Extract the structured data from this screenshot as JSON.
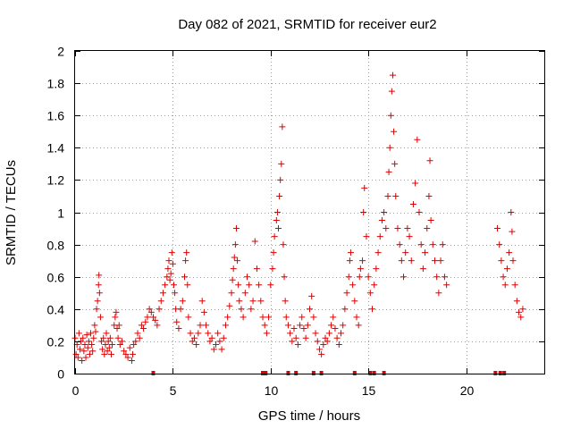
{
  "chart_data": {
    "type": "scatter",
    "title": "Day 082 of 2021, SRMTID for receiver eur2",
    "xlabel": "GPS time / hours",
    "ylabel": "SRMTID / TECUs",
    "xlim": [
      0,
      24
    ],
    "ylim": [
      0,
      2
    ],
    "xticks": [
      0,
      5,
      10,
      15,
      20
    ],
    "yticks": [
      0,
      0.2,
      0.4,
      0.6,
      0.8,
      1,
      1.2,
      1.4,
      1.6,
      1.8,
      2
    ],
    "ytick_labels": [
      "0",
      "0.2",
      "0.4",
      "0.6",
      "0.8",
      "1",
      "1.2",
      "1.4",
      "1.6",
      "1.8",
      "2"
    ],
    "grid": true,
    "marker": "+",
    "color": "#e00000",
    "data_gap_markers_x": [
      4.0,
      9.6,
      9.75,
      10.9,
      11.3,
      12.2,
      12.6,
      14.3,
      15.1,
      15.3,
      15.8,
      21.5,
      21.75,
      21.95
    ],
    "series": [
      {
        "name": "SRMTID",
        "points": [
          [
            0.0,
            0.22
          ],
          [
            0.05,
            0.12
          ],
          [
            0.1,
            0.18
          ],
          [
            0.15,
            0.1
          ],
          [
            0.2,
            0.25
          ],
          [
            0.25,
            0.15
          ],
          [
            0.3,
            0.2
          ],
          [
            0.35,
            0.08
          ],
          [
            0.4,
            0.22
          ],
          [
            0.45,
            0.14
          ],
          [
            0.5,
            0.18
          ],
          [
            0.55,
            0.1
          ],
          [
            0.6,
            0.24
          ],
          [
            0.65,
            0.16
          ],
          [
            0.7,
            0.2
          ],
          [
            0.75,
            0.12
          ],
          [
            0.8,
            0.25
          ],
          [
            0.85,
            0.18
          ],
          [
            0.9,
            0.14
          ],
          [
            0.95,
            0.22
          ],
          [
            1.0,
            0.3
          ],
          [
            1.05,
            0.26
          ],
          [
            1.1,
            0.4
          ],
          [
            1.15,
            0.45
          ],
          [
            1.2,
            0.55
          ],
          [
            1.22,
            0.61
          ],
          [
            1.25,
            0.5
          ],
          [
            1.3,
            0.35
          ],
          [
            1.35,
            0.2
          ],
          [
            1.4,
            0.15
          ],
          [
            1.45,
            0.22
          ],
          [
            1.5,
            0.12
          ],
          [
            1.55,
            0.18
          ],
          [
            1.6,
            0.25
          ],
          [
            1.65,
            0.14
          ],
          [
            1.7,
            0.2
          ],
          [
            1.75,
            0.16
          ],
          [
            1.8,
            0.22
          ],
          [
            1.85,
            0.12
          ],
          [
            1.9,
            0.18
          ],
          [
            2.0,
            0.3
          ],
          [
            2.05,
            0.35
          ],
          [
            2.1,
            0.38
          ],
          [
            2.15,
            0.28
          ],
          [
            2.2,
            0.22
          ],
          [
            2.25,
            0.3
          ],
          [
            2.3,
            0.18
          ],
          [
            2.4,
            0.2
          ],
          [
            2.5,
            0.14
          ],
          [
            2.6,
            0.12
          ],
          [
            2.7,
            0.1
          ],
          [
            2.8,
            0.16
          ],
          [
            2.9,
            0.08
          ],
          [
            2.95,
            0.12
          ],
          [
            3.0,
            0.18
          ],
          [
            3.1,
            0.2
          ],
          [
            3.2,
            0.25
          ],
          [
            3.3,
            0.22
          ],
          [
            3.4,
            0.3
          ],
          [
            3.5,
            0.28
          ],
          [
            3.6,
            0.32
          ],
          [
            3.7,
            0.35
          ],
          [
            3.8,
            0.4
          ],
          [
            3.9,
            0.38
          ],
          [
            4.0,
            0.35
          ],
          [
            4.1,
            0.33
          ],
          [
            4.2,
            0.3
          ],
          [
            4.3,
            0.4
          ],
          [
            4.4,
            0.45
          ],
          [
            4.5,
            0.5
          ],
          [
            4.6,
            0.55
          ],
          [
            4.7,
            0.6
          ],
          [
            4.75,
            0.65
          ],
          [
            4.8,
            0.7
          ],
          [
            4.85,
            0.58
          ],
          [
            4.9,
            0.62
          ],
          [
            4.95,
            0.75
          ],
          [
            5.0,
            0.68
          ],
          [
            5.05,
            0.55
          ],
          [
            5.1,
            0.5
          ],
          [
            5.15,
            0.4
          ],
          [
            5.2,
            0.32
          ],
          [
            5.3,
            0.28
          ],
          [
            5.4,
            0.4
          ],
          [
            5.5,
            0.45
          ],
          [
            5.6,
            0.6
          ],
          [
            5.65,
            0.7
          ],
          [
            5.7,
            0.75
          ],
          [
            5.75,
            0.55
          ],
          [
            5.8,
            0.35
          ],
          [
            5.9,
            0.25
          ],
          [
            6.0,
            0.2
          ],
          [
            6.1,
            0.22
          ],
          [
            6.2,
            0.18
          ],
          [
            6.3,
            0.25
          ],
          [
            6.4,
            0.3
          ],
          [
            6.5,
            0.45
          ],
          [
            6.6,
            0.38
          ],
          [
            6.7,
            0.3
          ],
          [
            6.8,
            0.25
          ],
          [
            6.9,
            0.2
          ],
          [
            7.0,
            0.22
          ],
          [
            7.1,
            0.15
          ],
          [
            7.2,
            0.18
          ],
          [
            7.3,
            0.25
          ],
          [
            7.4,
            0.2
          ],
          [
            7.5,
            0.15
          ],
          [
            7.6,
            0.22
          ],
          [
            7.7,
            0.3
          ],
          [
            7.8,
            0.35
          ],
          [
            7.9,
            0.42
          ],
          [
            8.0,
            0.5
          ],
          [
            8.05,
            0.58
          ],
          [
            8.1,
            0.65
          ],
          [
            8.15,
            0.72
          ],
          [
            8.2,
            0.8
          ],
          [
            8.25,
            0.9
          ],
          [
            8.3,
            0.7
          ],
          [
            8.35,
            0.55
          ],
          [
            8.4,
            0.45
          ],
          [
            8.5,
            0.4
          ],
          [
            8.6,
            0.35
          ],
          [
            8.7,
            0.5
          ],
          [
            8.8,
            0.6
          ],
          [
            8.9,
            0.55
          ],
          [
            9.0,
            0.4
          ],
          [
            9.1,
            0.45
          ],
          [
            9.2,
            0.82
          ],
          [
            9.3,
            0.65
          ],
          [
            9.4,
            0.55
          ],
          [
            9.5,
            0.45
          ],
          [
            9.6,
            0.35
          ],
          [
            9.7,
            0.3
          ],
          [
            9.8,
            0.25
          ],
          [
            9.9,
            0.35
          ],
          [
            10.0,
            0.55
          ],
          [
            10.1,
            0.65
          ],
          [
            10.15,
            0.75
          ],
          [
            10.2,
            0.85
          ],
          [
            10.3,
            0.95
          ],
          [
            10.35,
            1.0
          ],
          [
            10.4,
            0.9
          ],
          [
            10.45,
            1.1
          ],
          [
            10.5,
            1.2
          ],
          [
            10.55,
            1.3
          ],
          [
            10.6,
            1.53
          ],
          [
            10.65,
            0.8
          ],
          [
            10.7,
            0.6
          ],
          [
            10.75,
            0.45
          ],
          [
            10.8,
            0.35
          ],
          [
            10.9,
            0.3
          ],
          [
            11.0,
            0.25
          ],
          [
            11.1,
            0.2
          ],
          [
            11.2,
            0.28
          ],
          [
            11.3,
            0.22
          ],
          [
            11.4,
            0.18
          ],
          [
            11.5,
            0.3
          ],
          [
            11.6,
            0.35
          ],
          [
            11.7,
            0.28
          ],
          [
            11.8,
            0.22
          ],
          [
            11.9,
            0.3
          ],
          [
            12.0,
            0.4
          ],
          [
            12.1,
            0.48
          ],
          [
            12.2,
            0.35
          ],
          [
            12.3,
            0.25
          ],
          [
            12.4,
            0.2
          ],
          [
            12.5,
            0.15
          ],
          [
            12.6,
            0.12
          ],
          [
            12.7,
            0.18
          ],
          [
            12.8,
            0.22
          ],
          [
            12.9,
            0.2
          ],
          [
            13.0,
            0.25
          ],
          [
            13.1,
            0.3
          ],
          [
            13.2,
            0.35
          ],
          [
            13.3,
            0.28
          ],
          [
            13.4,
            0.22
          ],
          [
            13.5,
            0.18
          ],
          [
            13.6,
            0.25
          ],
          [
            13.7,
            0.3
          ],
          [
            13.8,
            0.4
          ],
          [
            13.9,
            0.5
          ],
          [
            14.0,
            0.6
          ],
          [
            14.05,
            0.7
          ],
          [
            14.1,
            0.75
          ],
          [
            14.2,
            0.55
          ],
          [
            14.3,
            0.45
          ],
          [
            14.4,
            0.35
          ],
          [
            14.5,
            0.3
          ],
          [
            14.55,
            0.6
          ],
          [
            14.6,
            0.65
          ],
          [
            14.7,
            0.7
          ],
          [
            14.75,
            1.0
          ],
          [
            14.8,
            1.15
          ],
          [
            14.9,
            0.85
          ],
          [
            15.0,
            0.6
          ],
          [
            15.1,
            0.5
          ],
          [
            15.2,
            0.4
          ],
          [
            15.3,
            0.55
          ],
          [
            15.4,
            0.65
          ],
          [
            15.5,
            0.75
          ],
          [
            15.6,
            0.85
          ],
          [
            15.7,
            0.95
          ],
          [
            15.8,
            1.0
          ],
          [
            15.9,
            0.9
          ],
          [
            16.0,
            1.1
          ],
          [
            16.05,
            1.25
          ],
          [
            16.1,
            1.4
          ],
          [
            16.15,
            1.6
          ],
          [
            16.2,
            1.75
          ],
          [
            16.25,
            1.85
          ],
          [
            16.3,
            1.5
          ],
          [
            16.35,
            1.3
          ],
          [
            16.4,
            1.1
          ],
          [
            16.5,
            0.9
          ],
          [
            16.6,
            0.8
          ],
          [
            16.7,
            0.7
          ],
          [
            16.8,
            0.6
          ],
          [
            16.9,
            0.75
          ],
          [
            17.0,
            0.9
          ],
          [
            17.1,
            0.85
          ],
          [
            17.2,
            0.7
          ],
          [
            17.3,
            1.05
          ],
          [
            17.4,
            1.18
          ],
          [
            17.5,
            1.45
          ],
          [
            17.6,
            1.0
          ],
          [
            17.7,
            0.8
          ],
          [
            17.8,
            0.65
          ],
          [
            17.9,
            0.75
          ],
          [
            18.0,
            0.9
          ],
          [
            18.1,
            1.1
          ],
          [
            18.15,
            1.32
          ],
          [
            18.2,
            0.95
          ],
          [
            18.3,
            0.8
          ],
          [
            18.4,
            0.7
          ],
          [
            18.5,
            0.6
          ],
          [
            18.6,
            0.5
          ],
          [
            18.7,
            0.7
          ],
          [
            18.8,
            0.8
          ],
          [
            18.9,
            0.6
          ],
          [
            19.0,
            0.55
          ],
          [
            21.6,
            0.9
          ],
          [
            21.7,
            0.8
          ],
          [
            21.8,
            0.7
          ],
          [
            21.9,
            0.6
          ],
          [
            22.0,
            0.55
          ],
          [
            22.1,
            0.65
          ],
          [
            22.2,
            0.75
          ],
          [
            22.3,
            1.0
          ],
          [
            22.35,
            0.88
          ],
          [
            22.4,
            0.7
          ],
          [
            22.5,
            0.55
          ],
          [
            22.6,
            0.45
          ],
          [
            22.7,
            0.38
          ],
          [
            22.8,
            0.35
          ],
          [
            22.9,
            0.4
          ]
        ]
      }
    ]
  }
}
